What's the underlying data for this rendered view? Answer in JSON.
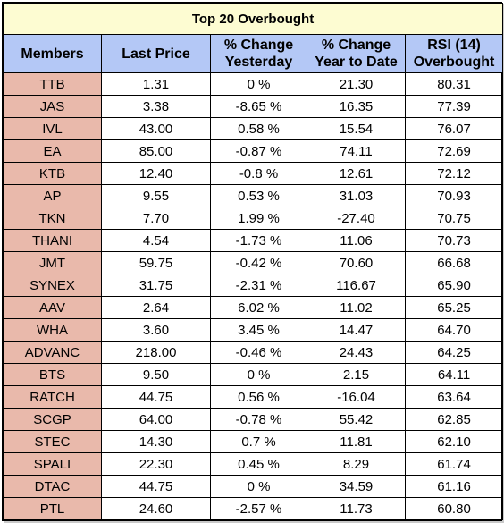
{
  "title": "Top 20 Overbought",
  "columns": [
    {
      "line1": "Members",
      "line2": ""
    },
    {
      "line1": "Last Price",
      "line2": ""
    },
    {
      "line1": "% Change",
      "line2": "Yesterday"
    },
    {
      "line1": "% Change",
      "line2": "Year to Date"
    },
    {
      "line1": "RSI (14)",
      "line2": "Overbought"
    }
  ],
  "rows": [
    {
      "member": "TTB",
      "last_price": "1.31",
      "change_yesterday": "0 %",
      "change_ytd": "21.30",
      "rsi": "80.31"
    },
    {
      "member": "JAS",
      "last_price": "3.38",
      "change_yesterday": "-8.65 %",
      "change_ytd": "16.35",
      "rsi": "77.39"
    },
    {
      "member": "IVL",
      "last_price": "43.00",
      "change_yesterday": "0.58 %",
      "change_ytd": "15.54",
      "rsi": "76.07"
    },
    {
      "member": "EA",
      "last_price": "85.00",
      "change_yesterday": "-0.87 %",
      "change_ytd": "74.11",
      "rsi": "72.69"
    },
    {
      "member": "KTB",
      "last_price": "12.40",
      "change_yesterday": "-0.8 %",
      "change_ytd": "12.61",
      "rsi": "72.12"
    },
    {
      "member": "AP",
      "last_price": "9.55",
      "change_yesterday": "0.53 %",
      "change_ytd": "31.03",
      "rsi": "70.93"
    },
    {
      "member": "TKN",
      "last_price": "7.70",
      "change_yesterday": "1.99 %",
      "change_ytd": "-27.40",
      "rsi": "70.75"
    },
    {
      "member": "THANI",
      "last_price": "4.54",
      "change_yesterday": "-1.73 %",
      "change_ytd": "11.06",
      "rsi": "70.73"
    },
    {
      "member": "JMT",
      "last_price": "59.75",
      "change_yesterday": "-0.42 %",
      "change_ytd": "70.60",
      "rsi": "66.68"
    },
    {
      "member": "SYNEX",
      "last_price": "31.75",
      "change_yesterday": "-2.31 %",
      "change_ytd": "116.67",
      "rsi": "65.90"
    },
    {
      "member": "AAV",
      "last_price": "2.64",
      "change_yesterday": "6.02 %",
      "change_ytd": "11.02",
      "rsi": "65.25"
    },
    {
      "member": "WHA",
      "last_price": "3.60",
      "change_yesterday": "3.45 %",
      "change_ytd": "14.47",
      "rsi": "64.70"
    },
    {
      "member": "ADVANC",
      "last_price": "218.00",
      "change_yesterday": "-0.46 %",
      "change_ytd": "24.43",
      "rsi": "64.25"
    },
    {
      "member": "BTS",
      "last_price": "9.50",
      "change_yesterday": "0 %",
      "change_ytd": "2.15",
      "rsi": "64.11"
    },
    {
      "member": "RATCH",
      "last_price": "44.75",
      "change_yesterday": "0.56 %",
      "change_ytd": "-16.04",
      "rsi": "63.64"
    },
    {
      "member": "SCGP",
      "last_price": "64.00",
      "change_yesterday": "-0.78 %",
      "change_ytd": "55.42",
      "rsi": "62.85"
    },
    {
      "member": "STEC",
      "last_price": "14.30",
      "change_yesterday": "0.7 %",
      "change_ytd": "11.81",
      "rsi": "62.10"
    },
    {
      "member": "SPALI",
      "last_price": "22.30",
      "change_yesterday": "0.45 %",
      "change_ytd": "8.29",
      "rsi": "61.74"
    },
    {
      "member": "DTAC",
      "last_price": "44.75",
      "change_yesterday": "0 %",
      "change_ytd": "34.59",
      "rsi": "61.16"
    },
    {
      "member": "PTL",
      "last_price": "24.60",
      "change_yesterday": "-2.57 %",
      "change_ytd": "11.73",
      "rsi": "60.80"
    }
  ],
  "colors": {
    "title_bg": "#fdfcd2",
    "header_bg": "#b4c8f6",
    "member_bg": "#e9b9ab"
  }
}
